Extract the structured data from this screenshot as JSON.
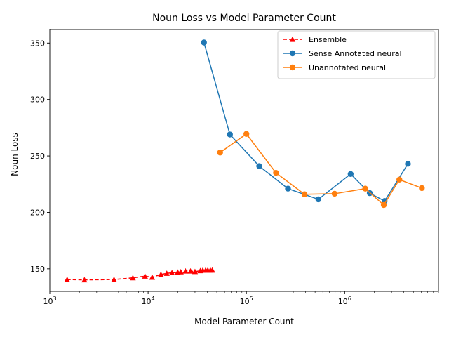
{
  "chart_data": {
    "type": "line",
    "title": "Noun Loss vs Model Parameter Count",
    "xlabel": "Model Parameter Count",
    "ylabel": "Noun Loss",
    "xscale": "log",
    "xlim": [
      1000,
      9000000
    ],
    "ylim": [
      130,
      362
    ],
    "xticks": [
      {
        "value": 1000,
        "base": "10",
        "exp": "3"
      },
      {
        "value": 10000,
        "base": "10",
        "exp": "4"
      },
      {
        "value": 100000,
        "base": "10",
        "exp": "5"
      },
      {
        "value": 1000000,
        "base": "10",
        "exp": "6"
      }
    ],
    "yticks": [
      {
        "value": 150,
        "label": "150"
      },
      {
        "value": 200,
        "label": "200"
      },
      {
        "value": 250,
        "label": "250"
      },
      {
        "value": 300,
        "label": "300"
      },
      {
        "value": 350,
        "label": "350"
      }
    ],
    "grid": false,
    "legend_position": "top-right",
    "series": [
      {
        "name": "Ensemble",
        "color": "#ff0000",
        "linestyle": "dashed",
        "marker": "triangle",
        "points": [
          [
            1500,
            140.5
          ],
          [
            2250,
            140.2
          ],
          [
            4500,
            140.5
          ],
          [
            7000,
            142
          ],
          [
            9300,
            143.5
          ],
          [
            11000,
            142.5
          ],
          [
            13500,
            145
          ],
          [
            15500,
            146
          ],
          [
            17500,
            146.5
          ],
          [
            20000,
            147
          ],
          [
            21500,
            147.3
          ],
          [
            24000,
            148
          ],
          [
            27000,
            148
          ],
          [
            30000,
            147.5
          ],
          [
            34000,
            148.3
          ],
          [
            36000,
            148.7
          ],
          [
            38500,
            148.8
          ],
          [
            40500,
            148.8
          ],
          [
            43000,
            148.8
          ],
          [
            45000,
            148.8
          ]
        ]
      },
      {
        "name": "Sense Annotated neural",
        "color": "#1f77b4",
        "linestyle": "solid",
        "marker": "circle",
        "points": [
          [
            37000,
            350.5
          ],
          [
            68000,
            269
          ],
          [
            135000,
            241
          ],
          [
            265000,
            221
          ],
          [
            540000,
            211.5
          ],
          [
            1150000,
            234
          ],
          [
            1800000,
            217
          ],
          [
            2550000,
            210
          ],
          [
            4400000,
            243
          ]
        ]
      },
      {
        "name": "Unannotated neural",
        "color": "#ff7f0e",
        "linestyle": "solid",
        "marker": "circle",
        "points": [
          [
            54000,
            253
          ],
          [
            100000,
            269.5
          ],
          [
            200000,
            235
          ],
          [
            390000,
            216
          ],
          [
            790000,
            216.5
          ],
          [
            1620000,
            221
          ],
          [
            2500000,
            206.5
          ],
          [
            3600000,
            229
          ],
          [
            6100000,
            221.5
          ]
        ]
      }
    ]
  }
}
